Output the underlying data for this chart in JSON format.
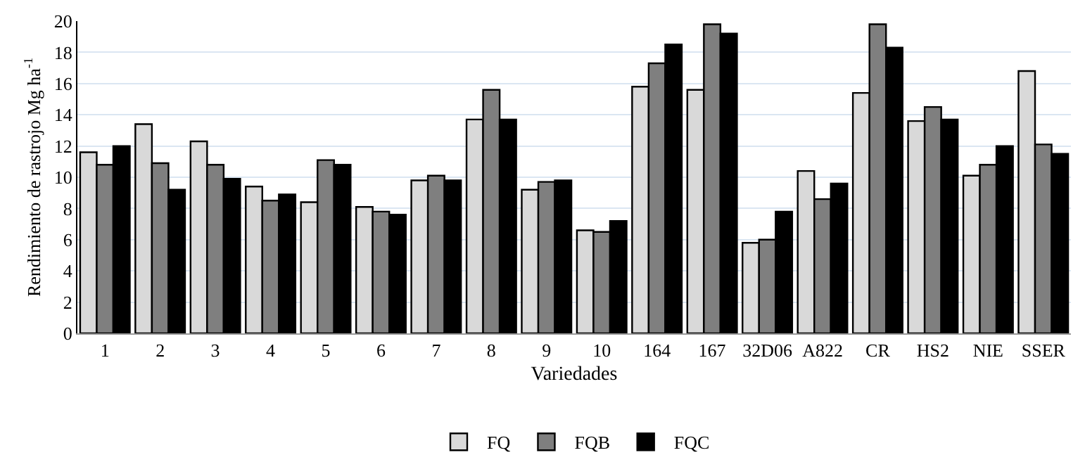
{
  "chart_data": {
    "type": "bar",
    "xlabel": "Variedades",
    "ylabel": "Rendimiento de rastrojo Mg ha$^{-1}$",
    "categories": [
      "1",
      "2",
      "3",
      "4",
      "5",
      "6",
      "7",
      "8",
      "9",
      "10",
      "164",
      "167",
      "32D06",
      "A822",
      "CR",
      "HS2",
      "NIE",
      "SSER"
    ],
    "series": [
      {
        "name": "FQ",
        "color": "#d9d9d9",
        "values": [
          11.6,
          13.4,
          12.3,
          9.4,
          8.4,
          8.1,
          9.8,
          13.7,
          9.2,
          6.6,
          15.8,
          15.6,
          5.8,
          10.4,
          15.4,
          13.6,
          10.1,
          16.8
        ]
      },
      {
        "name": "FQB",
        "color": "#7f7f7f",
        "values": [
          10.8,
          10.9,
          10.8,
          8.5,
          11.1,
          7.8,
          10.1,
          15.6,
          9.7,
          6.5,
          17.3,
          19.8,
          6.0,
          8.6,
          19.8,
          14.5,
          10.8,
          12.1
        ]
      },
      {
        "name": "FQC",
        "color": "#000000",
        "values": [
          12.0,
          9.2,
          9.9,
          8.9,
          10.8,
          7.6,
          9.8,
          13.7,
          9.8,
          7.2,
          18.5,
          19.2,
          7.8,
          9.6,
          18.3,
          13.7,
          12.0,
          11.5
        ]
      }
    ],
    "ylim": [
      0,
      20
    ],
    "yticks": [
      0,
      2,
      4,
      6,
      8,
      10,
      12,
      14,
      16,
      18,
      20
    ],
    "grid": "y",
    "legend": "bottom"
  }
}
